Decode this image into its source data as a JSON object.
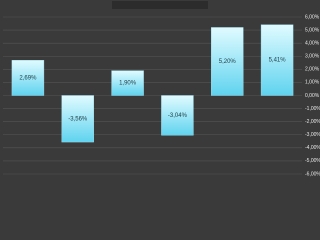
{
  "chart_data": {
    "type": "bar",
    "categories": [
      null,
      null,
      null,
      null,
      null,
      null
    ],
    "values": [
      2.69,
      -3.56,
      1.9,
      -3.04,
      5.2,
      5.41
    ],
    "value_labels": [
      "2,69%",
      "-3,56%",
      "1,90%",
      "-3,04%",
      "5,20%",
      "5,41%"
    ],
    "color": "#5fd3ef",
    "ylim": [
      -6,
      6
    ],
    "yticks": [
      {
        "value": 6,
        "label": "6,00%"
      },
      {
        "value": 5,
        "label": "5,00%"
      },
      {
        "value": 4,
        "label": "4,00%"
      },
      {
        "value": 3,
        "label": "3,00%"
      },
      {
        "value": 2,
        "label": "2,00%"
      },
      {
        "value": 1,
        "label": "1,00%"
      },
      {
        "value": 0,
        "label": "0,00%"
      },
      {
        "value": -1,
        "label": "-1,00%"
      },
      {
        "value": -2,
        "label": "-2,00%"
      },
      {
        "value": -3,
        "label": "-3,00%"
      },
      {
        "value": -4,
        "label": "-4,00%"
      },
      {
        "value": -5,
        "label": "-5,00%"
      },
      {
        "value": -6,
        "label": "-6,00%"
      }
    ],
    "grid": true
  }
}
